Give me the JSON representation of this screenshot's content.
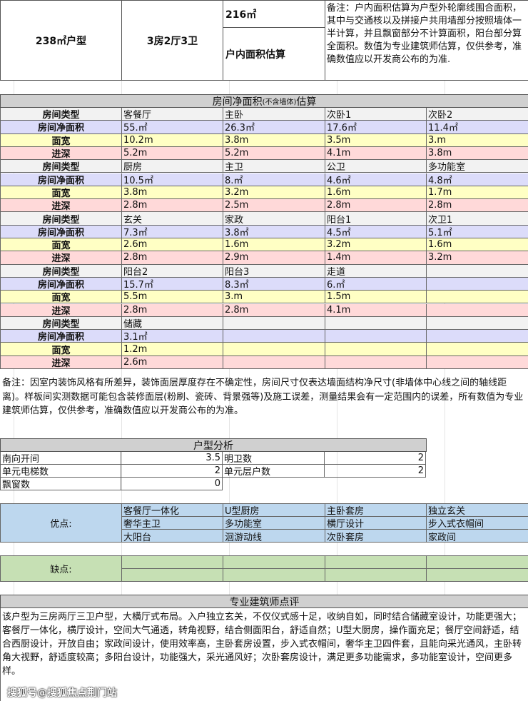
{
  "top": {
    "unit_type": "238㎡户型",
    "layout": "3房2厅3卫",
    "area_value": "216㎡",
    "area_label": "户内面积估算",
    "note": "备注：户内面积估算为户型外轮廓线围合面积，其中与交通核以及拼接户共用墙部分按照墙体一半计算，并且飘窗部分不计算面积，阳台部分算全面积。数值为专业建筑师估算，仅供参考，准确数值应以开发商公布的为准."
  },
  "rooms": {
    "title": "房间净面积",
    "title_small": "(不含墙体)",
    "title_end": "估算",
    "labels": [
      "房间类型",
      "房间净面积",
      "面宽",
      "进深"
    ],
    "colors": [
      "#f2f2f2",
      "#dcdcfa",
      "#ffffc4",
      "#ffd9d9"
    ],
    "blocks": [
      [
        [
          "客餐厅",
          "55.㎡",
          "10.2m",
          "5.2m"
        ],
        [
          "主卧",
          "26.3㎡",
          "3.8m",
          "5.2m"
        ],
        [
          "次卧1",
          "17.6㎡",
          "3.5m",
          "4.1m"
        ],
        [
          "次卧2",
          "11.4㎡",
          "3.m",
          "3.8m"
        ]
      ],
      [
        [
          "厨房",
          "10.5㎡",
          "3.8m",
          "2.8m"
        ],
        [
          "主卫",
          "8.㎡",
          "3.2m",
          "2.5m"
        ],
        [
          "公卫",
          "4.6㎡",
          "1.6m",
          "2.8m"
        ],
        [
          "多功能室",
          "4.8㎡",
          "1.7m",
          "2.8m"
        ]
      ],
      [
        [
          "玄关",
          "7.3㎡",
          "2.6m",
          "2.8m"
        ],
        [
          "家政",
          "3.8㎡",
          "1.6m",
          "2.9m"
        ],
        [
          "阳台1",
          "4.5㎡",
          "3.2m",
          "1.4m"
        ],
        [
          "次卫1",
          "5.1㎡",
          "1.6m",
          "3.2m"
        ]
      ],
      [
        [
          "阳台2",
          "15.7㎡",
          "5.5m",
          "2.8m"
        ],
        [
          "阳台3",
          "8.3㎡",
          "3.m",
          "2.8m"
        ],
        [
          "走道",
          "6.㎡",
          "1.5m",
          "4.1m"
        ],
        [
          "",
          "",
          "",
          ""
        ]
      ],
      [
        [
          "储藏",
          "3.1㎡",
          "1.2m",
          "2.6m"
        ],
        [
          "",
          "",
          "",
          ""
        ],
        [
          "",
          "",
          "",
          ""
        ],
        [
          "",
          "",
          "",
          ""
        ]
      ]
    ],
    "note": "备注：因室内装饰风格有所差异，装饰面层厚度存在不确定性，房间尺寸仅表达墙面结构净尺寸(非墙体中心线之间的轴线距离)。样板间实测数据可能包含装修面层(粉刷、瓷砖、背景强等)及施工误差，测量结果会有一定范围内的误差，所有数值为专业建筑师估算，仅供参考，准确数值应以开发商公布的为准。"
  },
  "analysis": {
    "title": "户型分析",
    "rows": [
      [
        "南向开间",
        "3.5",
        "明卫数",
        "2"
      ],
      [
        "单元电梯数",
        "2",
        "单元层户数",
        "2"
      ],
      [
        "飘窗数",
        "0",
        "",
        ""
      ]
    ]
  },
  "pros": {
    "label": "优点:",
    "color": "#bdd7ee",
    "items": [
      [
        "客餐厅一体化",
        "U型厨房",
        "主卧套房",
        "独立玄关"
      ],
      [
        "奢华主卫",
        "多功能室",
        "横厅设计",
        "步入式衣帽间"
      ],
      [
        "大阳台",
        "洄游动线",
        "次卧套房",
        "家政间"
      ]
    ]
  },
  "cons": {
    "label": "缺点:",
    "color": "#c6e0b4"
  },
  "review": {
    "title": "专业建筑师点评",
    "text": "该户型为三房两厅三卫户型，大横厅式布局。入户独立玄关，不仅仪式感十足，收纳自如，同时结合储藏室设计，功能更强大；客餐厅一体化，横厅设计，空间大气通透，转角视野，结合侧面阳台，舒适自然；U型大厨房，操作面充足；餐厅空间舒适，结合西厨设计，开放自由；家政间设计，使用效率高，主卧套房设置，步入式衣帽间，奢华主卫四件套，且能向采光通风，主卧转角大视野，舒适度较高；多阳台设计，功能强大，采光通风好；次卧套房设计，满足更多功能需求，多功能室设计，空间更多样。"
  },
  "watermark": "搜狐号@搜狐焦点荆门站"
}
